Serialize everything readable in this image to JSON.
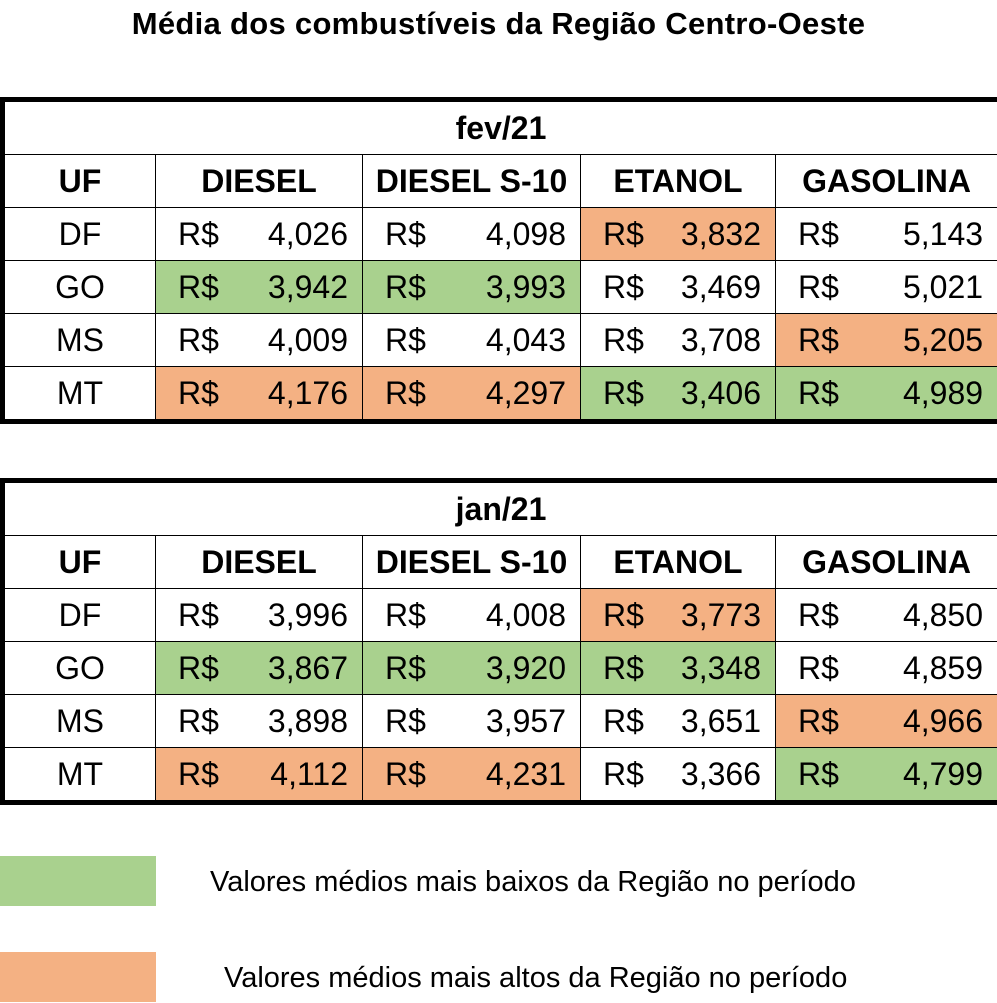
{
  "title": "Média dos combustíveis da Região Centro-Oeste",
  "headers": [
    "UF",
    "DIESEL",
    "DIESEL S-10",
    "ETANOL",
    "GASOLINA"
  ],
  "currency": "R$",
  "tables": [
    {
      "period": "fev/21",
      "rows": [
        {
          "uf": "DF",
          "values": [
            "4,026",
            "4,098",
            "3,832",
            "5,143"
          ],
          "marks": [
            "",
            "",
            "high",
            ""
          ]
        },
        {
          "uf": "GO",
          "values": [
            "3,942",
            "3,993",
            "3,469",
            "5,021"
          ],
          "marks": [
            "low",
            "low",
            "",
            ""
          ]
        },
        {
          "uf": "MS",
          "values": [
            "4,009",
            "4,043",
            "3,708",
            "5,205"
          ],
          "marks": [
            "",
            "",
            "",
            "high"
          ]
        },
        {
          "uf": "MT",
          "values": [
            "4,176",
            "4,297",
            "3,406",
            "4,989"
          ],
          "marks": [
            "high",
            "high",
            "low",
            "low"
          ]
        }
      ]
    },
    {
      "period": "jan/21",
      "rows": [
        {
          "uf": "DF",
          "values": [
            "3,996",
            "4,008",
            "3,773",
            "4,850"
          ],
          "marks": [
            "",
            "",
            "high",
            ""
          ]
        },
        {
          "uf": "GO",
          "values": [
            "3,867",
            "3,920",
            "3,348",
            "4,859"
          ],
          "marks": [
            "low",
            "low",
            "low",
            ""
          ]
        },
        {
          "uf": "MS",
          "values": [
            "3,898",
            "3,957",
            "3,651",
            "4,966"
          ],
          "marks": [
            "",
            "",
            "",
            "high"
          ]
        },
        {
          "uf": "MT",
          "values": [
            "4,112",
            "4,231",
            "3,366",
            "4,799"
          ],
          "marks": [
            "high",
            "high",
            "",
            "low"
          ]
        }
      ]
    }
  ],
  "legend": {
    "low": {
      "label": "Valores médios mais baixos da Região no período",
      "color": "#a9d18e"
    },
    "high": {
      "label": "Valores médios mais altos da Região no período",
      "color": "#f4b183"
    }
  }
}
